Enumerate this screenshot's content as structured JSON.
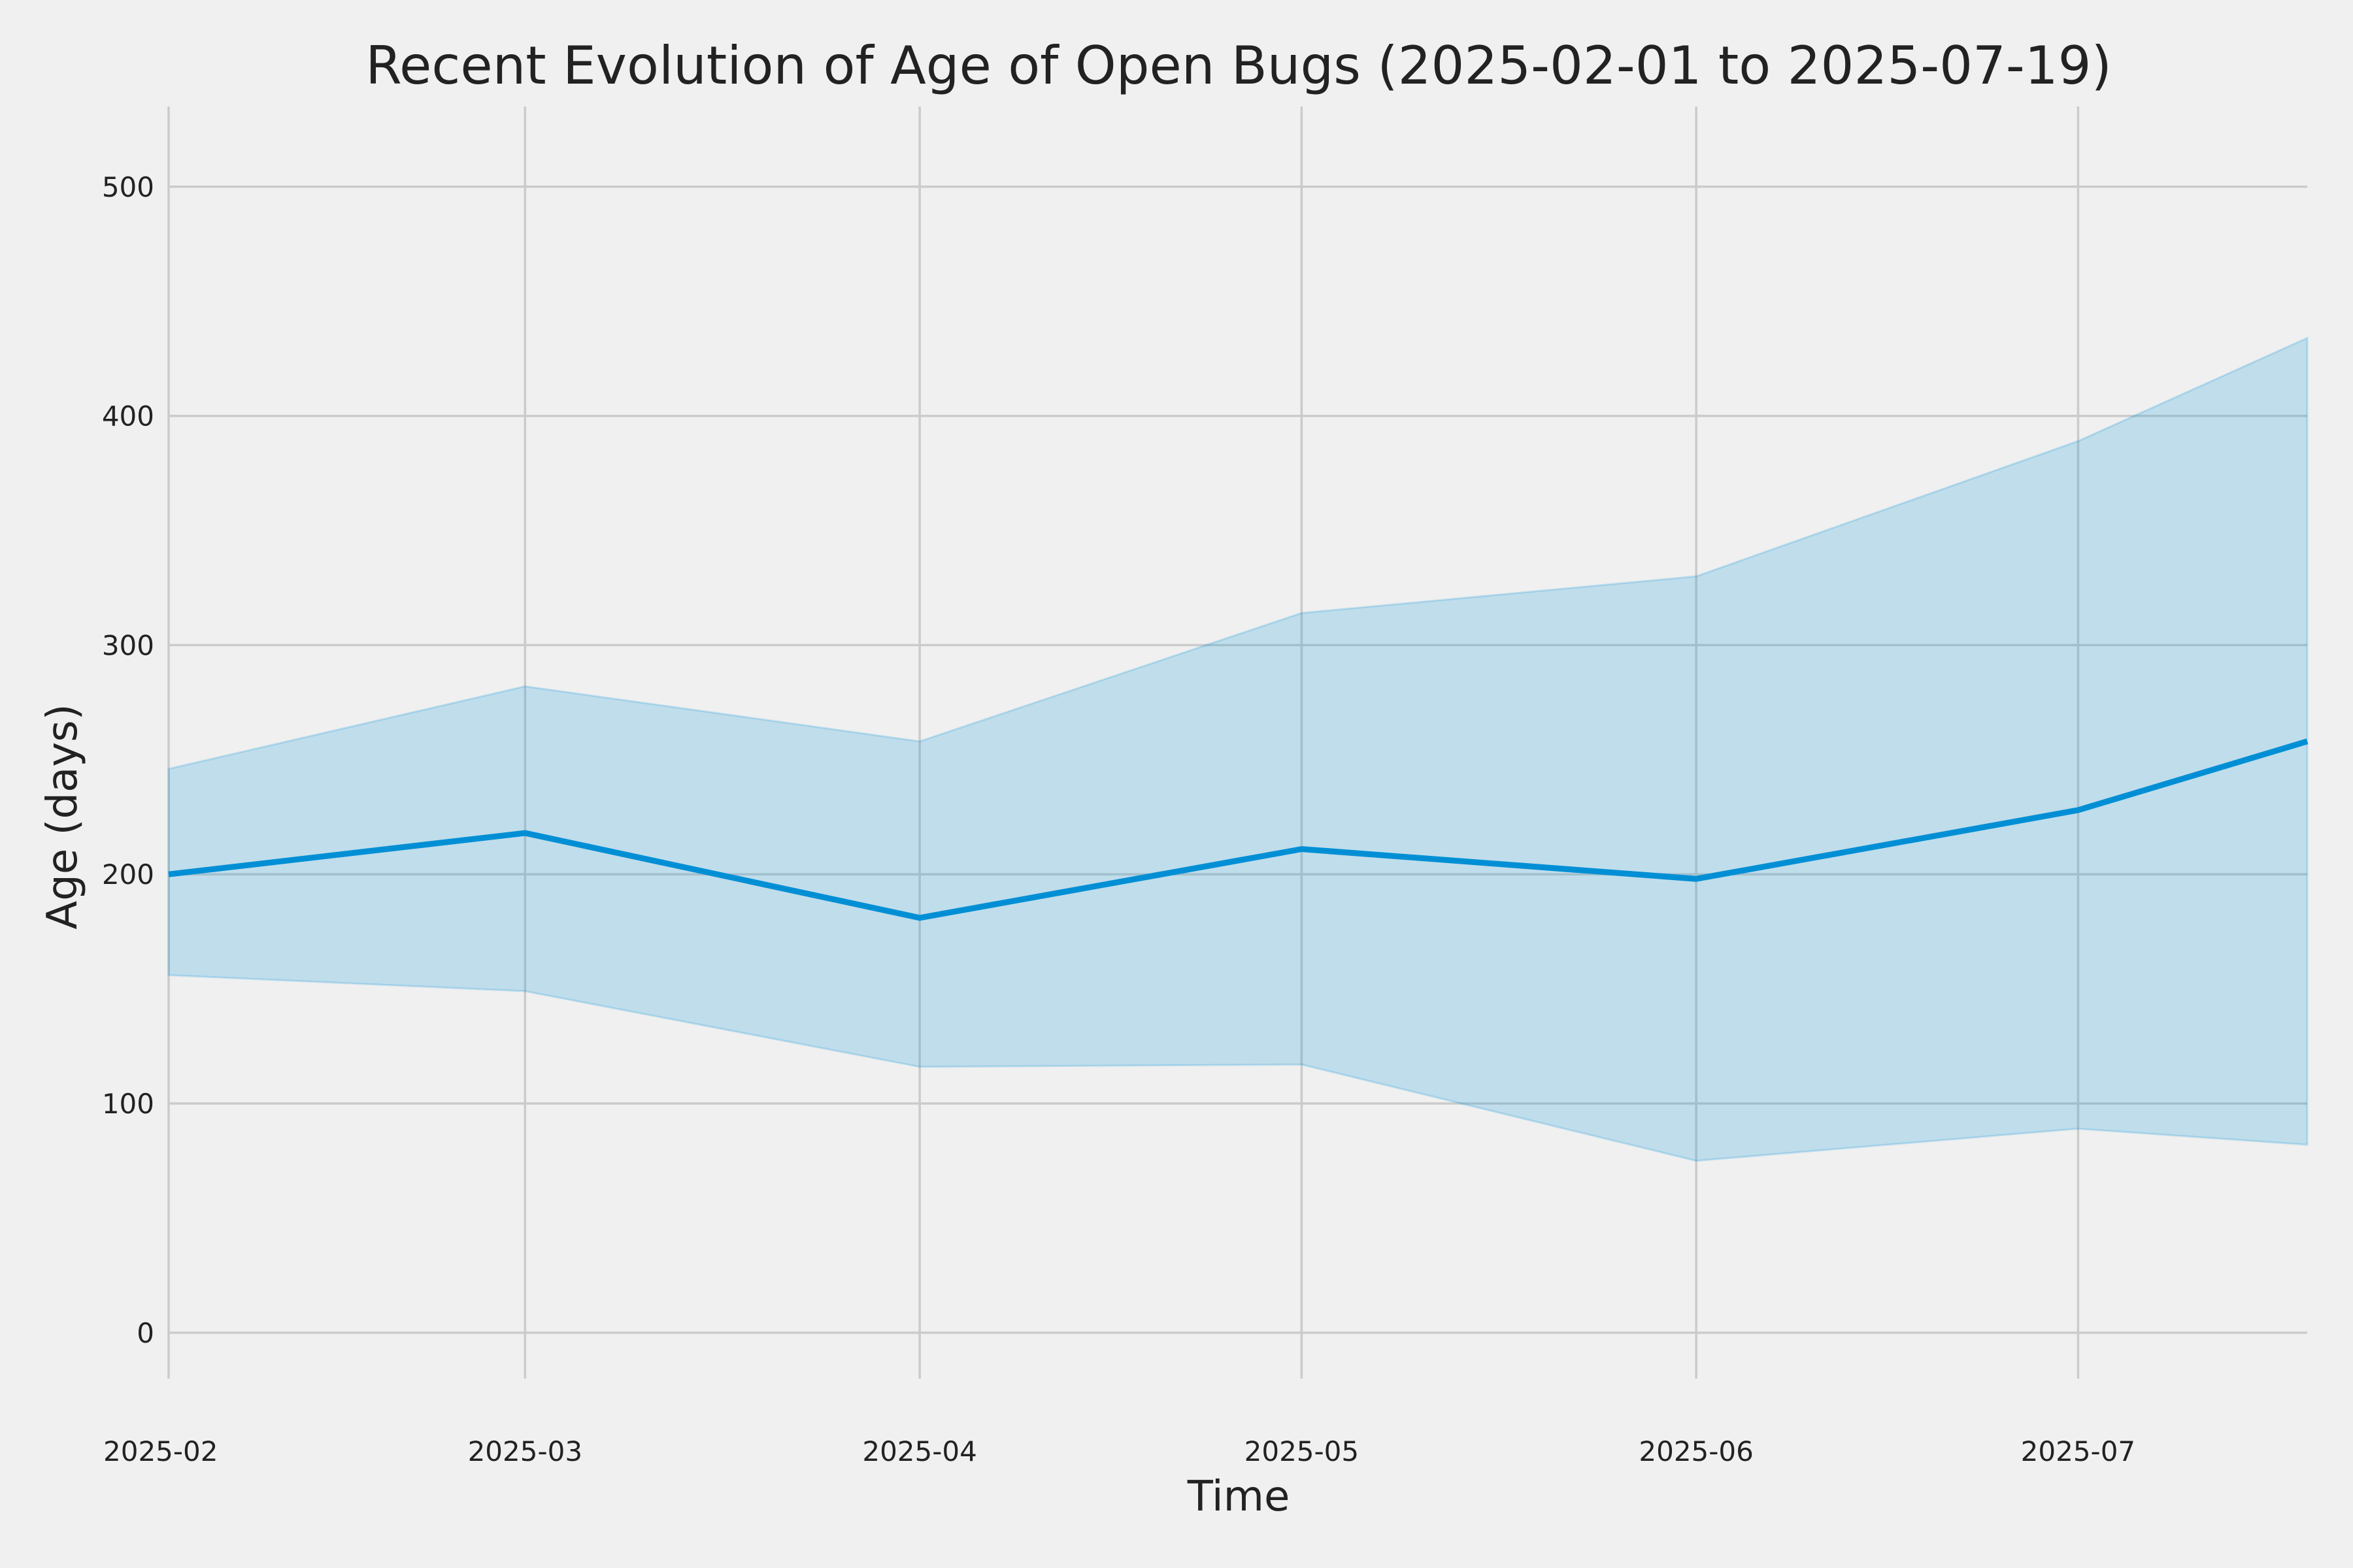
{
  "chart_data": {
    "type": "area",
    "title": "Recent Evolution of Age of Open Bugs (2025-02-01 to 2025-07-19)",
    "xlabel": "Time",
    "ylabel": "Age (days)",
    "xlim": [
      "2025-02-01",
      "2025-07-19"
    ],
    "ylim": [
      -20,
      535
    ],
    "grid": true,
    "legend": "none",
    "x_ticks": [
      "2025-02",
      "2025-03",
      "2025-04",
      "2025-05",
      "2025-06",
      "2025-07"
    ],
    "x_tick_dates": [
      "2025-02-01",
      "2025-03-01",
      "2025-04-01",
      "2025-05-01",
      "2025-06-01",
      "2025-07-01"
    ],
    "y_ticks": [
      0,
      100,
      200,
      300,
      400,
      500
    ],
    "x": [
      "2025-02-01",
      "2025-03-01",
      "2025-04-01",
      "2025-05-01",
      "2025-06-01",
      "2025-07-01",
      "2025-07-19"
    ],
    "series": [
      {
        "type": "line",
        "values": [
          200,
          218,
          181,
          211,
          198,
          228,
          258
        ],
        "color": "#008fd5"
      },
      {
        "type": "band",
        "lower": [
          156,
          149,
          116,
          117,
          75,
          89,
          82
        ],
        "upper": [
          246,
          282,
          258,
          314,
          330,
          389,
          434
        ],
        "color": "#008fd5",
        "opacity": 0.2
      }
    ]
  }
}
